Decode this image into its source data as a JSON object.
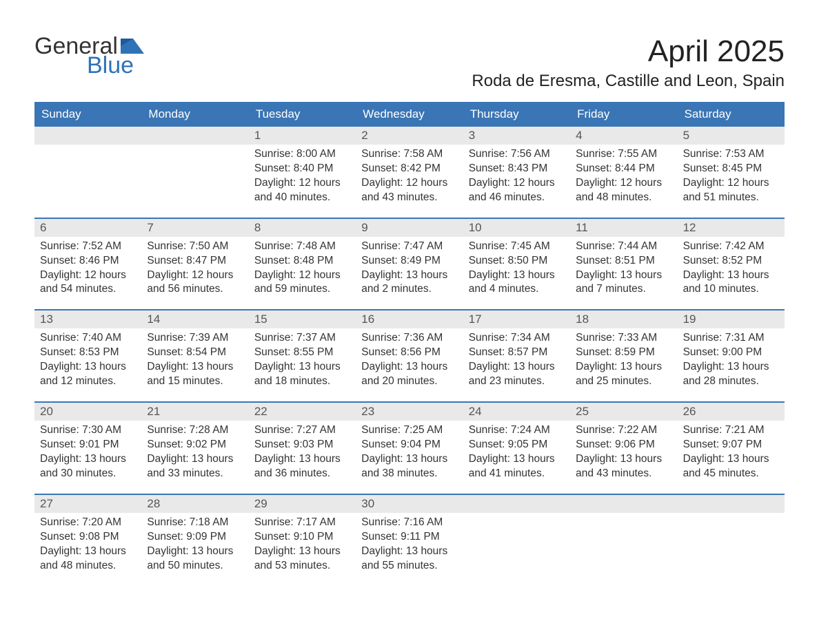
{
  "brand": {
    "word1": "General",
    "word2": "Blue",
    "accent": "#2f72b8",
    "text": "#333333"
  },
  "header": {
    "title": "April 2025",
    "location": "Roda de Eresma, Castille and Leon, Spain"
  },
  "calendar": {
    "header_bg": "#3a75b5",
    "header_fg": "#ffffff",
    "daynum_bg": "#e9e9e9",
    "border_color": "#3a75b5",
    "background": "#ffffff",
    "text_color": "#333333",
    "font_family": "Arial, Helvetica, sans-serif",
    "font_size_body": 15.5,
    "font_size_head": 17,
    "font_size_title": 44,
    "font_size_location": 24,
    "day_names": [
      "Sunday",
      "Monday",
      "Tuesday",
      "Wednesday",
      "Thursday",
      "Friday",
      "Saturday"
    ],
    "weeks": [
      [
        null,
        null,
        {
          "n": "1",
          "sr": "Sunrise: 8:00 AM",
          "ss": "Sunset: 8:40 PM",
          "dl": "Daylight: 12 hours and 40 minutes."
        },
        {
          "n": "2",
          "sr": "Sunrise: 7:58 AM",
          "ss": "Sunset: 8:42 PM",
          "dl": "Daylight: 12 hours and 43 minutes."
        },
        {
          "n": "3",
          "sr": "Sunrise: 7:56 AM",
          "ss": "Sunset: 8:43 PM",
          "dl": "Daylight: 12 hours and 46 minutes."
        },
        {
          "n": "4",
          "sr": "Sunrise: 7:55 AM",
          "ss": "Sunset: 8:44 PM",
          "dl": "Daylight: 12 hours and 48 minutes."
        },
        {
          "n": "5",
          "sr": "Sunrise: 7:53 AM",
          "ss": "Sunset: 8:45 PM",
          "dl": "Daylight: 12 hours and 51 minutes."
        }
      ],
      [
        {
          "n": "6",
          "sr": "Sunrise: 7:52 AM",
          "ss": "Sunset: 8:46 PM",
          "dl": "Daylight: 12 hours and 54 minutes."
        },
        {
          "n": "7",
          "sr": "Sunrise: 7:50 AM",
          "ss": "Sunset: 8:47 PM",
          "dl": "Daylight: 12 hours and 56 minutes."
        },
        {
          "n": "8",
          "sr": "Sunrise: 7:48 AM",
          "ss": "Sunset: 8:48 PM",
          "dl": "Daylight: 12 hours and 59 minutes."
        },
        {
          "n": "9",
          "sr": "Sunrise: 7:47 AM",
          "ss": "Sunset: 8:49 PM",
          "dl": "Daylight: 13 hours and 2 minutes."
        },
        {
          "n": "10",
          "sr": "Sunrise: 7:45 AM",
          "ss": "Sunset: 8:50 PM",
          "dl": "Daylight: 13 hours and 4 minutes."
        },
        {
          "n": "11",
          "sr": "Sunrise: 7:44 AM",
          "ss": "Sunset: 8:51 PM",
          "dl": "Daylight: 13 hours and 7 minutes."
        },
        {
          "n": "12",
          "sr": "Sunrise: 7:42 AM",
          "ss": "Sunset: 8:52 PM",
          "dl": "Daylight: 13 hours and 10 minutes."
        }
      ],
      [
        {
          "n": "13",
          "sr": "Sunrise: 7:40 AM",
          "ss": "Sunset: 8:53 PM",
          "dl": "Daylight: 13 hours and 12 minutes."
        },
        {
          "n": "14",
          "sr": "Sunrise: 7:39 AM",
          "ss": "Sunset: 8:54 PM",
          "dl": "Daylight: 13 hours and 15 minutes."
        },
        {
          "n": "15",
          "sr": "Sunrise: 7:37 AM",
          "ss": "Sunset: 8:55 PM",
          "dl": "Daylight: 13 hours and 18 minutes."
        },
        {
          "n": "16",
          "sr": "Sunrise: 7:36 AM",
          "ss": "Sunset: 8:56 PM",
          "dl": "Daylight: 13 hours and 20 minutes."
        },
        {
          "n": "17",
          "sr": "Sunrise: 7:34 AM",
          "ss": "Sunset: 8:57 PM",
          "dl": "Daylight: 13 hours and 23 minutes."
        },
        {
          "n": "18",
          "sr": "Sunrise: 7:33 AM",
          "ss": "Sunset: 8:59 PM",
          "dl": "Daylight: 13 hours and 25 minutes."
        },
        {
          "n": "19",
          "sr": "Sunrise: 7:31 AM",
          "ss": "Sunset: 9:00 PM",
          "dl": "Daylight: 13 hours and 28 minutes."
        }
      ],
      [
        {
          "n": "20",
          "sr": "Sunrise: 7:30 AM",
          "ss": "Sunset: 9:01 PM",
          "dl": "Daylight: 13 hours and 30 minutes."
        },
        {
          "n": "21",
          "sr": "Sunrise: 7:28 AM",
          "ss": "Sunset: 9:02 PM",
          "dl": "Daylight: 13 hours and 33 minutes."
        },
        {
          "n": "22",
          "sr": "Sunrise: 7:27 AM",
          "ss": "Sunset: 9:03 PM",
          "dl": "Daylight: 13 hours and 36 minutes."
        },
        {
          "n": "23",
          "sr": "Sunrise: 7:25 AM",
          "ss": "Sunset: 9:04 PM",
          "dl": "Daylight: 13 hours and 38 minutes."
        },
        {
          "n": "24",
          "sr": "Sunrise: 7:24 AM",
          "ss": "Sunset: 9:05 PM",
          "dl": "Daylight: 13 hours and 41 minutes."
        },
        {
          "n": "25",
          "sr": "Sunrise: 7:22 AM",
          "ss": "Sunset: 9:06 PM",
          "dl": "Daylight: 13 hours and 43 minutes."
        },
        {
          "n": "26",
          "sr": "Sunrise: 7:21 AM",
          "ss": "Sunset: 9:07 PM",
          "dl": "Daylight: 13 hours and 45 minutes."
        }
      ],
      [
        {
          "n": "27",
          "sr": "Sunrise: 7:20 AM",
          "ss": "Sunset: 9:08 PM",
          "dl": "Daylight: 13 hours and 48 minutes."
        },
        {
          "n": "28",
          "sr": "Sunrise: 7:18 AM",
          "ss": "Sunset: 9:09 PM",
          "dl": "Daylight: 13 hours and 50 minutes."
        },
        {
          "n": "29",
          "sr": "Sunrise: 7:17 AM",
          "ss": "Sunset: 9:10 PM",
          "dl": "Daylight: 13 hours and 53 minutes."
        },
        {
          "n": "30",
          "sr": "Sunrise: 7:16 AM",
          "ss": "Sunset: 9:11 PM",
          "dl": "Daylight: 13 hours and 55 minutes."
        },
        null,
        null,
        null
      ]
    ]
  }
}
